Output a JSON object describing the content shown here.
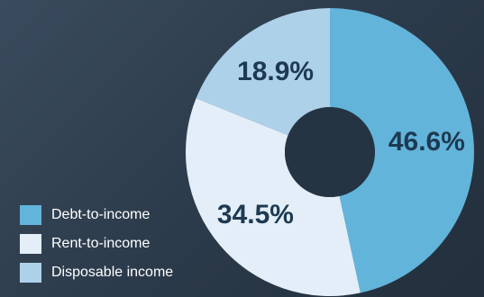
{
  "chart_data": {
    "type": "pie",
    "donut": true,
    "categories": [
      "Debt-to-income",
      "Rent-to-income",
      "Disposable income"
    ],
    "values": [
      46.6,
      34.5,
      18.9
    ],
    "value_labels": [
      "46.6%",
      "34.5%",
      "18.9%"
    ],
    "colors": [
      "#63b4da",
      "#e3eef8",
      "#aed1ea"
    ],
    "start_angle_deg": 0,
    "direction": "clockwise",
    "legend_position": "bottom-left",
    "title": "",
    "legend": [
      {
        "label": "Debt-to-income",
        "color": "#63b4da"
      },
      {
        "label": "Rent-to-income",
        "color": "#e3eef8"
      },
      {
        "label": "Disposable income",
        "color": "#aed1ea"
      }
    ]
  }
}
